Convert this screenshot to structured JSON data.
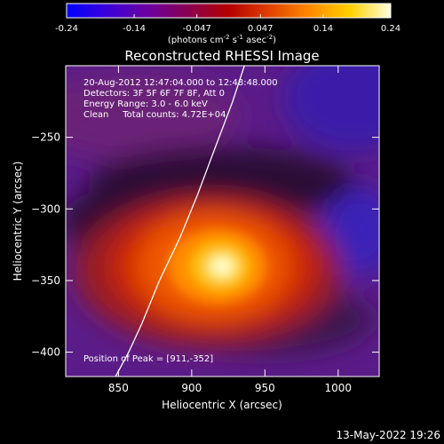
{
  "chart_data": {
    "type": "heatmap",
    "title": "Reconstructed RHESSI Image",
    "colorbar": {
      "ticks": [
        "-0.24",
        "-0.14",
        "-0.047",
        "0.047",
        "0.14",
        "0.24"
      ],
      "range": [
        -0.24,
        0.24
      ],
      "unit_parts": [
        "(photons cm",
        "-2",
        " s",
        "-1",
        " asec",
        "-2",
        ")"
      ],
      "colormap": [
        "#0000ff",
        "#3b00d9",
        "#6b00a0",
        "#8a0050",
        "#b40000",
        "#e04000",
        "#ff8a00",
        "#ffd000",
        "#ffffe0"
      ]
    },
    "xlabel": "Heliocentric X (arcsec)",
    "ylabel": "Heliocentric Y (arcsec)",
    "xlim": [
      814,
      1028
    ],
    "ylim": [
      -417,
      -200
    ],
    "xticks": [
      850,
      900,
      950,
      1000
    ],
    "yticks": [
      -250,
      -300,
      -350,
      -400
    ],
    "annotations": [
      "20-Aug-2012 12:47:04.000 to 12:48:48.000",
      "Detectors: 3F 5F 6F 7F 8F, Att 0",
      "Energy Range: 3.0 - 6.0 keV",
      "Clean     Total counts: 4.72E+04"
    ],
    "peak_label": "Position of Peak = [911,-352]",
    "peak": [
      911,
      -352
    ],
    "limb_line": [
      [
        848,
        -417
      ],
      [
        857,
        -400
      ],
      [
        866,
        -380
      ],
      [
        878,
        -350
      ],
      [
        892,
        -320
      ],
      [
        904,
        -290
      ],
      [
        915,
        -260
      ],
      [
        928,
        -225
      ],
      [
        936,
        -200
      ]
    ],
    "footer": "13-May-2022 19:26",
    "grid": false
  }
}
